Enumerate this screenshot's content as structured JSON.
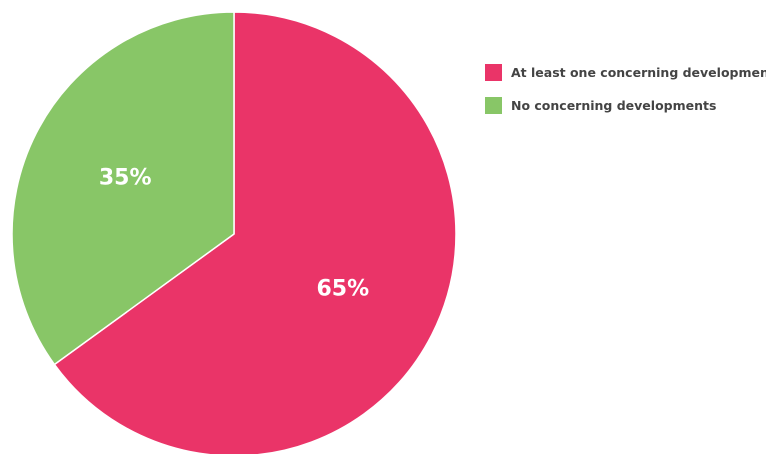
{
  "chart_data": {
    "type": "pie",
    "categories": [
      "At least one concerning development",
      "No concerning developments"
    ],
    "values": [
      65,
      35
    ],
    "value_labels": [
      "65%",
      "35%"
    ],
    "colors": [
      "#ea3468",
      "#88c667"
    ],
    "start": "12 o'clock",
    "direction": "clockwise",
    "legend_position": "right"
  },
  "legend": {
    "items": [
      {
        "label": "At least one concerning development",
        "color": "#ea3468"
      },
      {
        "label": "No concerning developments",
        "color": "#88c667"
      }
    ]
  }
}
